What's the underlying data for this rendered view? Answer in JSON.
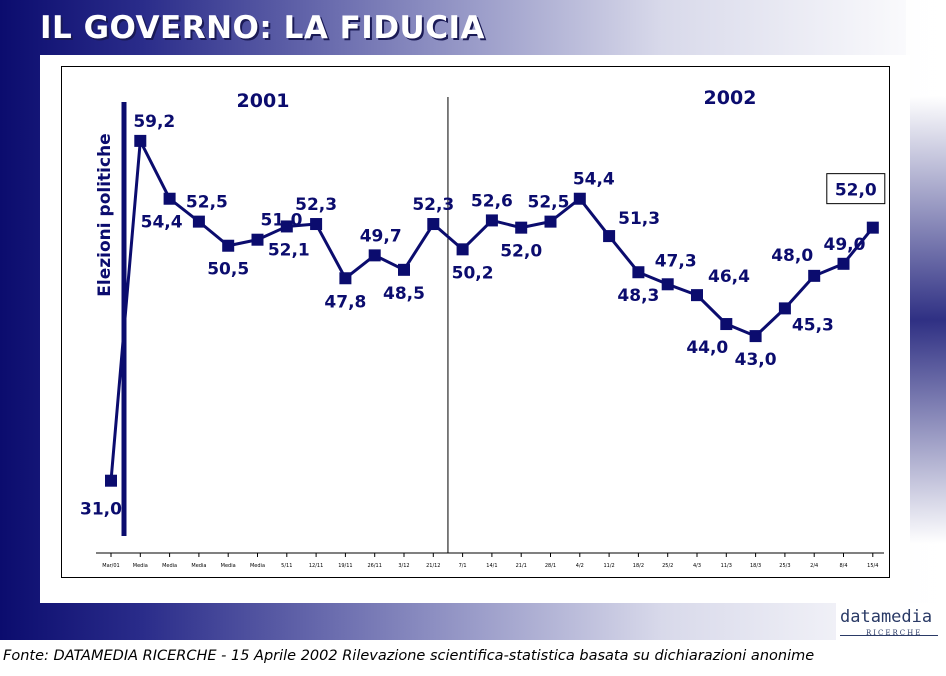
{
  "slide": {
    "title": "IL GOVERNO: LA FIDUCIA",
    "footer": "Fonte: DATAMEDIA RICERCHE - 15 Aprile 2002 Rilevazione scientifica-statistica basata su dichiarazioni anonime",
    "logo_main": "datamedia",
    "logo_sub": "RICERCHE"
  },
  "colors": {
    "series": "#0b0c6e",
    "title": "#ffffff",
    "background_dark": "#0b0c6e"
  },
  "chart_data": {
    "type": "line",
    "title": "",
    "xlabel": "",
    "ylabel": "",
    "ylim": [
      25,
      65
    ],
    "grid": false,
    "year_labels": [
      "2001",
      "2002"
    ],
    "event_label": "Elezioni politiche",
    "highlighted_value": "52,0",
    "categories": [
      "Mar/01",
      "Media",
      "Media",
      "Media",
      "Media",
      "Media",
      "5/11",
      "12/11",
      "19/11",
      "26/11",
      "3/12",
      "21/12",
      "7/1",
      "14/1",
      "21/1",
      "28/1",
      "4/2",
      "11/2",
      "18/2",
      "25/2",
      "4/3",
      "11/3",
      "18/3",
      "25/3",
      "2/4",
      "8/4",
      "15/4"
    ],
    "series": [
      {
        "values": [
          31.0,
          59.2,
          54.4,
          52.5,
          50.5,
          51.0,
          52.1,
          52.3,
          47.8,
          49.7,
          48.5,
          52.3,
          50.2,
          52.6,
          52.0,
          52.5,
          54.4,
          51.3,
          48.3,
          47.3,
          46.4,
          44.0,
          43.0,
          45.3,
          48.0,
          49.0,
          52.0
        ],
        "labels": [
          "31,0",
          "59,2",
          "54,4",
          "52,5",
          "50,5",
          "51,0",
          "52,1",
          "52,3",
          "47,8",
          "49,7",
          "48,5",
          "52,3",
          "50,2",
          "52,6",
          "52,0",
          "52,5",
          "54,4",
          "51,3",
          "48,3",
          "47,3",
          "46,4",
          "44,0",
          "43,0",
          "45,3",
          "48,0",
          "49,0",
          "52,0"
        ]
      }
    ]
  }
}
